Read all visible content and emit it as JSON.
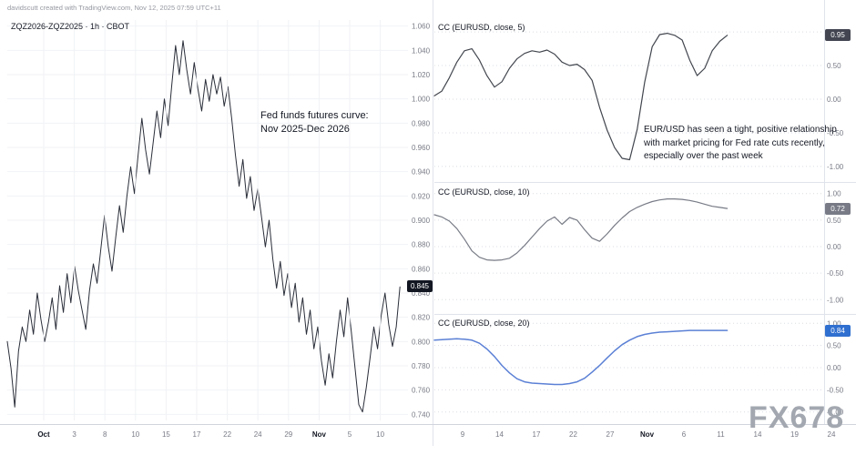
{
  "attribution": "davidscutt created with TradingView.com, Nov 12, 2025 07:59 UTC+11",
  "watermark": "FX678",
  "annotations": {
    "left": "Fed funds futures curve:\nNov 2025-Dec 2026",
    "right": "EUR/USD has seen a tight, positive relationship\nwith market pricing for Fed rate cuts recently,\nespecially over the past week"
  },
  "colors": {
    "axis_text": "#787b86",
    "month_text": "#131722",
    "grid_main": "#f0f2f6",
    "grid_dotted": "#d9dde4",
    "separator": "#e0e3eb",
    "time_axis_line": "#d1d4dc"
  },
  "chart_data": [
    {
      "id": "main",
      "type": "line",
      "title": "ZQZ2026-ZQZ2025 · 1h · CBOT",
      "exchange": "CBOT",
      "interval": "1h",
      "last_price": "0.845",
      "ylim": [
        0.735,
        1.065
      ],
      "yticks": [
        "1.060",
        "1.040",
        "1.020",
        "1.000",
        "0.980",
        "0.960",
        "0.940",
        "0.920",
        "0.900",
        "0.880",
        "0.860",
        "0.840",
        "0.820",
        "0.800",
        "0.780",
        "0.760",
        "0.740"
      ],
      "xticklabels": [
        "Oct",
        "3",
        "8",
        "10",
        "15",
        "17",
        "22",
        "24",
        "29",
        "Nov",
        "5",
        "10"
      ],
      "x_extent": 0.98,
      "line_color": "#2a2e39",
      "values": [
        0.8,
        0.778,
        0.746,
        0.792,
        0.812,
        0.8,
        0.826,
        0.806,
        0.84,
        0.818,
        0.8,
        0.816,
        0.836,
        0.81,
        0.846,
        0.824,
        0.856,
        0.832,
        0.862,
        0.842,
        0.826,
        0.81,
        0.842,
        0.864,
        0.848,
        0.876,
        0.904,
        0.878,
        0.858,
        0.886,
        0.912,
        0.89,
        0.92,
        0.944,
        0.922,
        0.954,
        0.984,
        0.958,
        0.938,
        0.964,
        0.99,
        0.968,
        1.0,
        0.978,
        1.012,
        1.044,
        1.02,
        1.048,
        1.024,
        1.004,
        1.03,
        1.008,
        0.99,
        1.016,
        0.998,
        1.02,
        1.004,
        1.018,
        0.994,
        1.01,
        0.984,
        0.954,
        0.928,
        0.95,
        0.918,
        0.936,
        0.908,
        0.926,
        0.902,
        0.878,
        0.9,
        0.868,
        0.844,
        0.866,
        0.838,
        0.856,
        0.828,
        0.848,
        0.816,
        0.836,
        0.806,
        0.826,
        0.794,
        0.812,
        0.784,
        0.764,
        0.79,
        0.77,
        0.8,
        0.826,
        0.804,
        0.836,
        0.808,
        0.778,
        0.748,
        0.742,
        0.762,
        0.786,
        0.812,
        0.794,
        0.822,
        0.84,
        0.814,
        0.796,
        0.812,
        0.845
      ]
    },
    {
      "id": "cc5",
      "type": "line",
      "title": "CC (EURUSD, close, 5)",
      "badge": "0.95",
      "badge_color": "#434651",
      "ylim": [
        -1.15,
        1.15
      ],
      "yticks": [
        "1.00",
        "0.50",
        "0.00",
        "-0.50",
        "-1.00"
      ],
      "xticklabels": [
        "9",
        "14",
        "17",
        "22",
        "27",
        "Nov",
        "6",
        "11",
        "14",
        "19",
        "24"
      ],
      "x_extent": 0.755,
      "line_color": "#42464e",
      "values": [
        0.05,
        0.12,
        0.32,
        0.55,
        0.72,
        0.75,
        0.58,
        0.35,
        0.18,
        0.26,
        0.46,
        0.6,
        0.68,
        0.72,
        0.7,
        0.73,
        0.67,
        0.55,
        0.5,
        0.52,
        0.44,
        0.28,
        -0.12,
        -0.46,
        -0.72,
        -0.88,
        -0.9,
        -0.45,
        0.25,
        0.78,
        0.96,
        0.98,
        0.95,
        0.88,
        0.58,
        0.35,
        0.46,
        0.72,
        0.86,
        0.95
      ]
    },
    {
      "id": "cc10",
      "type": "line",
      "title": "CC (EURUSD, close, 10)",
      "badge": "0.72",
      "badge_color": "#787b86",
      "ylim": [
        -1.15,
        1.15
      ],
      "yticks": [
        "1.00",
        "0.50",
        "0.00",
        "-0.50",
        "-1.00"
      ],
      "x_extent": 0.755,
      "line_color": "#787b86",
      "values": [
        0.6,
        0.56,
        0.48,
        0.34,
        0.14,
        -0.08,
        -0.2,
        -0.25,
        -0.26,
        -0.25,
        -0.22,
        -0.12,
        0.02,
        0.18,
        0.34,
        0.48,
        0.56,
        0.42,
        0.55,
        0.5,
        0.32,
        0.16,
        0.1,
        0.24,
        0.4,
        0.54,
        0.66,
        0.74,
        0.8,
        0.85,
        0.88,
        0.9,
        0.9,
        0.89,
        0.87,
        0.84,
        0.8,
        0.76,
        0.74,
        0.72
      ]
    },
    {
      "id": "cc20",
      "type": "line",
      "title": "CC (EURUSD, close, 20)",
      "badge": "0.84",
      "badge_color": "#2f6fd0",
      "ylim": [
        -1.15,
        1.15
      ],
      "yticks": [
        "1.00",
        "0.50",
        "0.00",
        "-0.50",
        "-1.00"
      ],
      "x_extent": 0.755,
      "line_color": "#5b80d5",
      "values": [
        0.62,
        0.63,
        0.64,
        0.65,
        0.64,
        0.62,
        0.55,
        0.42,
        0.25,
        0.05,
        -0.12,
        -0.25,
        -0.32,
        -0.35,
        -0.36,
        -0.37,
        -0.38,
        -0.38,
        -0.36,
        -0.32,
        -0.24,
        -0.1,
        0.05,
        0.22,
        0.38,
        0.52,
        0.62,
        0.7,
        0.75,
        0.78,
        0.8,
        0.81,
        0.82,
        0.83,
        0.84,
        0.84,
        0.84,
        0.84,
        0.84,
        0.84
      ]
    }
  ]
}
